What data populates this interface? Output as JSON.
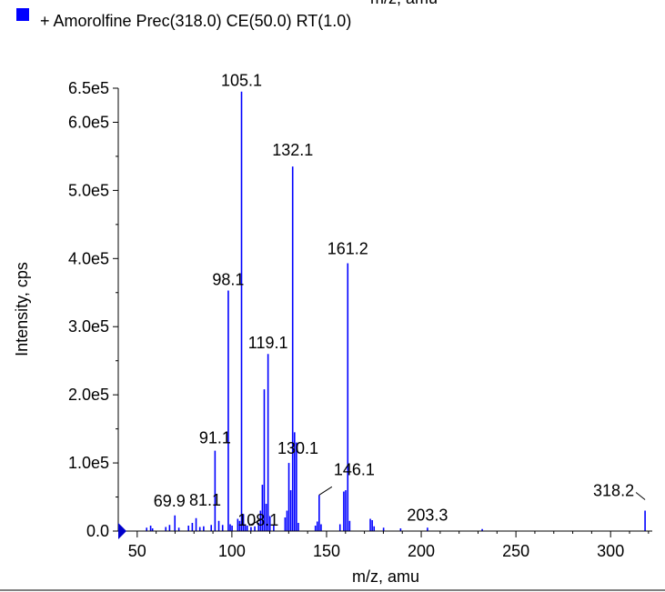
{
  "top_clipped_label": "m/z, amu",
  "legend": {
    "label": "+ Amorolfine Prec(318.0) CE(50.0) RT(1.0)",
    "swatch_color": "#0000ff"
  },
  "colors": {
    "series": "#0000ff",
    "axis": "#000000",
    "marker": "#0000cc"
  },
  "chart_data": {
    "type": "bar",
    "xlabel": "m/z, amu",
    "ylabel": "Intensity, cps",
    "xlim": [
      40,
      322
    ],
    "ylim": [
      0,
      650000
    ],
    "x_ticks": [
      50,
      100,
      150,
      200,
      250,
      300
    ],
    "y_ticks": [
      {
        "value": 0,
        "label": "0.0"
      },
      {
        "value": 100000,
        "label": "1.0e5"
      },
      {
        "value": 200000,
        "label": "2.0e5"
      },
      {
        "value": 300000,
        "label": "3.0e5"
      },
      {
        "value": 400000,
        "label": "4.0e5"
      },
      {
        "value": 500000,
        "label": "5.0e5"
      },
      {
        "value": 600000,
        "label": "6.0e5"
      },
      {
        "value": 650000,
        "label": "6.5e5"
      }
    ],
    "peaks": [
      {
        "x": 55.0,
        "y": 5000
      },
      {
        "x": 57.1,
        "y": 8000
      },
      {
        "x": 58.1,
        "y": 4000
      },
      {
        "x": 65.1,
        "y": 6000
      },
      {
        "x": 67.1,
        "y": 9000
      },
      {
        "x": 69.9,
        "y": 23000
      },
      {
        "x": 72.0,
        "y": 5000
      },
      {
        "x": 77.1,
        "y": 8000
      },
      {
        "x": 79.1,
        "y": 12000
      },
      {
        "x": 81.1,
        "y": 19000
      },
      {
        "x": 83.1,
        "y": 6000
      },
      {
        "x": 85.1,
        "y": 7000
      },
      {
        "x": 89.1,
        "y": 9000
      },
      {
        "x": 91.1,
        "y": 118000
      },
      {
        "x": 93.1,
        "y": 15000
      },
      {
        "x": 95.1,
        "y": 9000
      },
      {
        "x": 98.1,
        "y": 353000
      },
      {
        "x": 99.1,
        "y": 10000
      },
      {
        "x": 100.1,
        "y": 8000
      },
      {
        "x": 103.1,
        "y": 18000
      },
      {
        "x": 104.1,
        "y": 15000
      },
      {
        "x": 105.1,
        "y": 645000
      },
      {
        "x": 106.1,
        "y": 25000
      },
      {
        "x": 107.1,
        "y": 10000
      },
      {
        "x": 108.1,
        "y": 8000
      },
      {
        "x": 110.1,
        "y": 6000
      },
      {
        "x": 112.1,
        "y": 7000
      },
      {
        "x": 114.1,
        "y": 12000
      },
      {
        "x": 115.1,
        "y": 30000
      },
      {
        "x": 116.1,
        "y": 68000
      },
      {
        "x": 117.1,
        "y": 208000
      },
      {
        "x": 118.1,
        "y": 40000
      },
      {
        "x": 119.1,
        "y": 260000
      },
      {
        "x": 120.1,
        "y": 22000
      },
      {
        "x": 122.1,
        "y": 8000
      },
      {
        "x": 128.1,
        "y": 20000
      },
      {
        "x": 129.1,
        "y": 30000
      },
      {
        "x": 130.1,
        "y": 100000
      },
      {
        "x": 131.1,
        "y": 60000
      },
      {
        "x": 132.1,
        "y": 535000
      },
      {
        "x": 133.1,
        "y": 145000
      },
      {
        "x": 134.1,
        "y": 130000
      },
      {
        "x": 135.1,
        "y": 12000
      },
      {
        "x": 144.1,
        "y": 8000
      },
      {
        "x": 145.1,
        "y": 14000
      },
      {
        "x": 146.1,
        "y": 53000
      },
      {
        "x": 147.1,
        "y": 10000
      },
      {
        "x": 157.1,
        "y": 10000
      },
      {
        "x": 159.1,
        "y": 58000
      },
      {
        "x": 160.1,
        "y": 60000
      },
      {
        "x": 161.2,
        "y": 393000
      },
      {
        "x": 162.2,
        "y": 15000
      },
      {
        "x": 173.1,
        "y": 18000
      },
      {
        "x": 174.1,
        "y": 16000
      },
      {
        "x": 175.1,
        "y": 7000
      },
      {
        "x": 180.1,
        "y": 5000
      },
      {
        "x": 189.1,
        "y": 4000
      },
      {
        "x": 203.3,
        "y": 5000
      },
      {
        "x": 232.2,
        "y": 3000
      },
      {
        "x": 318.2,
        "y": 30000
      }
    ],
    "annotations": [
      {
        "text": "105.1",
        "x": 105.1,
        "y": 645000
      },
      {
        "text": "132.1",
        "x": 132.1,
        "y": 535000
      },
      {
        "text": "161.2",
        "x": 161.2,
        "y": 393000
      },
      {
        "text": "98.1",
        "x": 98.1,
        "y": 353000
      },
      {
        "text": "119.1",
        "x": 119.1,
        "y": 260000
      },
      {
        "text": "91.1",
        "x": 91.1,
        "y": 118000
      },
      {
        "text": "130.1",
        "x": 130.1,
        "y": 100000
      },
      {
        "text": "146.1",
        "x": 146.1,
        "y": 53000
      },
      {
        "text": "69.9",
        "x": 69.9,
        "y": 23000
      },
      {
        "text": "81.1",
        "x": 81.1,
        "y": 19000
      },
      {
        "text": "108.1",
        "x": 108.1,
        "y": 8000
      },
      {
        "text": "203.3",
        "x": 203.3,
        "y": 5000
      },
      {
        "text": "318.2",
        "x": 318.2,
        "y": 30000
      }
    ]
  }
}
